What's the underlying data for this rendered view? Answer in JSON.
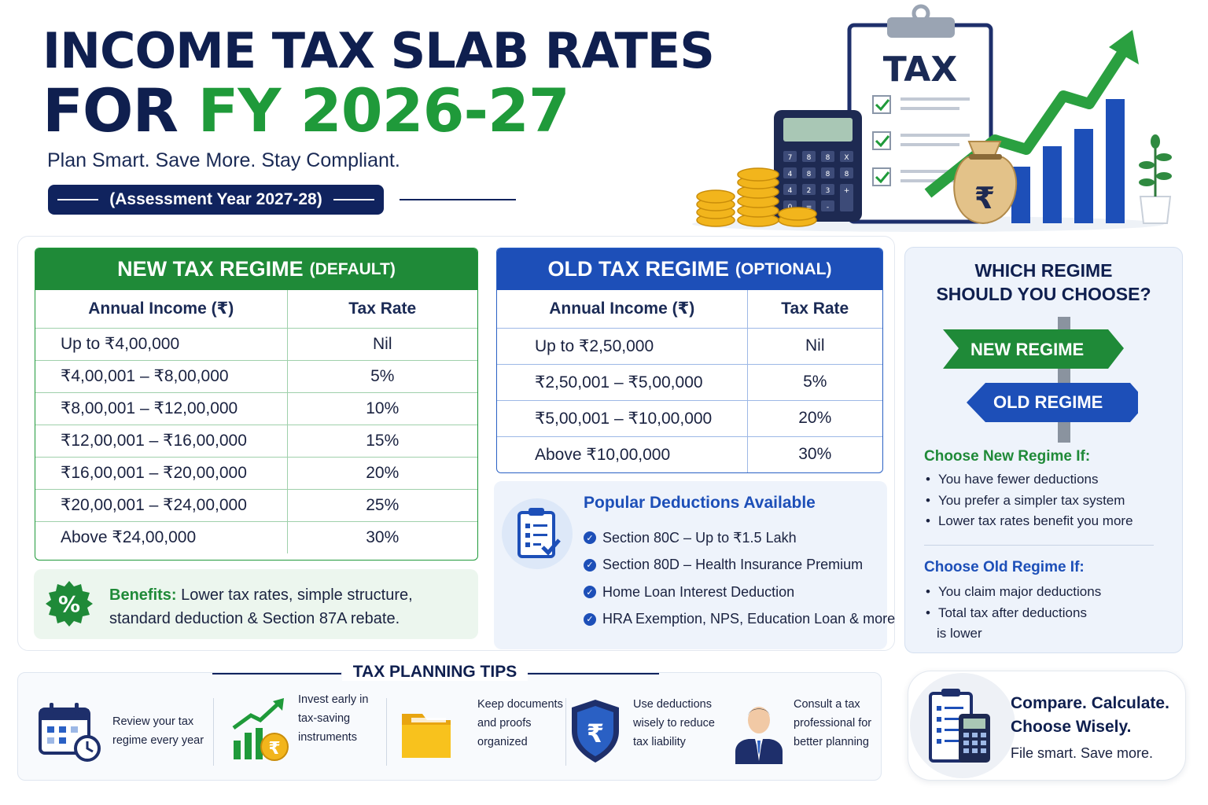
{
  "header": {
    "title_line1": "INCOME TAX SLAB RATES",
    "title_for": "FOR",
    "title_fy": "FY 2026-27",
    "tagline": "Plan Smart. Save More. Stay Compliant.",
    "assessment_year": "(Assessment Year 2027-28)"
  },
  "hero": {
    "clipboard_label": "TAX",
    "calculator_keys": [
      "7",
      "8",
      "8",
      "X",
      "4",
      "8",
      "8",
      "8",
      "4",
      "2",
      "3",
      "+",
      "0",
      "=",
      "-",
      ""
    ],
    "money_bag_symbol": "₹"
  },
  "new_regime": {
    "title": "NEW TAX REGIME",
    "subtitle": "(DEFAULT)",
    "col_income": "Annual Income (₹)",
    "col_rate": "Tax Rate",
    "rows": [
      {
        "income": "Up to  ₹4,00,000",
        "rate": "Nil"
      },
      {
        "income": "₹4,00,001  –  ₹8,00,000",
        "rate": "5%"
      },
      {
        "income": "₹8,00,001  –  ₹12,00,000",
        "rate": "10%"
      },
      {
        "income": "₹12,00,001  –  ₹16,00,000",
        "rate": "15%"
      },
      {
        "income": "₹16,00,001  –  ₹20,00,000",
        "rate": "20%"
      },
      {
        "income": "₹20,00,001  –  ₹24,00,000",
        "rate": "25%"
      },
      {
        "income": "Above  ₹24,00,000",
        "rate": "30%"
      }
    ],
    "benefits_label": "Benefits:",
    "benefits_text": " Lower tax rates, simple structure, standard deduction & Section 87A rebate."
  },
  "old_regime": {
    "title": "OLD TAX REGIME",
    "subtitle": "(OPTIONAL)",
    "col_income": "Annual Income (₹)",
    "col_rate": "Tax Rate",
    "rows": [
      {
        "income": "Up to  ₹2,50,000",
        "rate": "Nil"
      },
      {
        "income": "₹2,50,001  –  ₹5,00,000",
        "rate": "5%"
      },
      {
        "income": "₹5,00,001  –  ₹10,00,000",
        "rate": "20%"
      },
      {
        "income": "Above  ₹10,00,000",
        "rate": "30%"
      }
    ]
  },
  "deductions": {
    "title": "Popular Deductions Available",
    "items": [
      "Section 80C – Up to ₹1.5 Lakh",
      "Section 80D – Health Insurance Premium",
      "Home Loan Interest Deduction",
      "HRA Exemption, NPS, Education Loan & more"
    ]
  },
  "which": {
    "title_line1": "WHICH REGIME",
    "title_line2": "SHOULD YOU CHOOSE?",
    "sign_new": "NEW REGIME",
    "sign_old": "OLD REGIME",
    "new_heading": "Choose New Regime If:",
    "new_points": [
      "You have fewer deductions",
      "You prefer a simpler tax system",
      "Lower tax rates benefit you more"
    ],
    "old_heading": "Choose Old Regime If:",
    "old_points": [
      "You claim major deductions",
      "Total tax after deductions"
    ],
    "old_points_cont": "is lower"
  },
  "tips": {
    "title": "TAX PLANNING TIPS",
    "items": [
      {
        "l1": "Review your tax",
        "l2": "regime every year",
        "l3": ""
      },
      {
        "l1": "Invest early in",
        "l2": "tax-saving",
        "l3": "instruments"
      },
      {
        "l1": "Keep documents",
        "l2": "and proofs",
        "l3": "organized"
      },
      {
        "l1": "Use deductions",
        "l2": "wisely to reduce",
        "l3": "tax liability"
      },
      {
        "l1": "Consult a tax",
        "l2": "professional for",
        "l3": "better planning"
      }
    ],
    "rupee_symbol": "₹"
  },
  "compare": {
    "line1": "Compare. Calculate.",
    "line2": "Choose Wisely.",
    "line3": "File smart. Save more."
  },
  "colors": {
    "navy": "#0f1f4f",
    "green": "#1f8a38",
    "blue": "#1d4fb8",
    "gold": "#f2b51c"
  },
  "icons": [
    "clipboard-icon",
    "calculator-icon",
    "coin-stack-icon",
    "money-bag-icon",
    "growth-arrow-icon",
    "bar-chart-icon",
    "plant-icon",
    "percent-badge-icon",
    "checklist-icon",
    "signpost-icon",
    "calendar-icon",
    "investment-growth-icon",
    "folder-icon",
    "shield-rupee-icon",
    "consultant-icon"
  ]
}
